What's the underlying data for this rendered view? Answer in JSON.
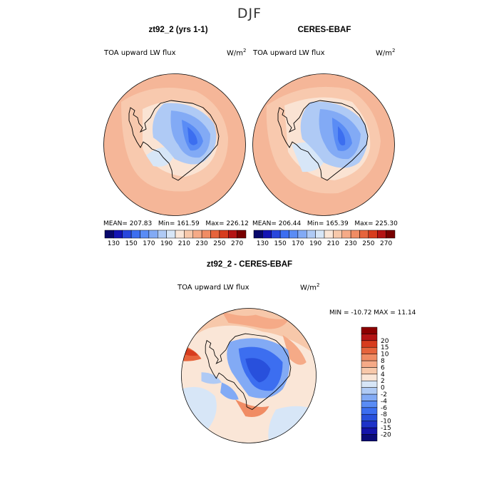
{
  "figure": {
    "title": "DJF"
  },
  "panels": [
    {
      "title": "zt92_2 (yrs 1-1)",
      "variable": "TOA upward LW flux",
      "units_base": "W/m",
      "units_exp": "2",
      "mean": "207.83",
      "min": "161.59",
      "max": "226.12",
      "mean_label": "MEAN=",
      "min_label": "Min=",
      "max_label": "Max="
    },
    {
      "title": "CERES-EBAF",
      "variable": "TOA upward LW flux",
      "units_base": "W/m",
      "units_exp": "2",
      "mean": "206.44",
      "min": "165.39",
      "max": "225.30",
      "mean_label": "MEAN=",
      "min_label": "Min=",
      "max_label": "Max="
    },
    {
      "title": "zt92_2 - CERES-EBAF",
      "variable": "TOA upward LW flux",
      "units_base": "W/m",
      "units_exp": "2",
      "stats_text": "MIN = -10.72  MAX =   11.14"
    }
  ],
  "colorbar_abs": {
    "colors": [
      "#08086b",
      "#1414b4",
      "#2846dc",
      "#3c6ef0",
      "#5a8cf5",
      "#82aaf5",
      "#afcaf5",
      "#d7e6f7",
      "#fae6d7",
      "#f7c8aa",
      "#f5aa87",
      "#f08c64",
      "#e6643c",
      "#d73c1e",
      "#b41414",
      "#780000"
    ],
    "tick_labels": [
      "130",
      "150",
      "170",
      "190",
      "210",
      "230",
      "250",
      "270"
    ]
  },
  "colorbar_diff": {
    "colors": [
      "#0a0a78",
      "#1414aa",
      "#1e32c8",
      "#2850dc",
      "#3c6ef0",
      "#5a8cf5",
      "#82aaf5",
      "#afcaf5",
      "#d7e6f7",
      "#fae6d7",
      "#f7c8aa",
      "#f5aa87",
      "#f08c64",
      "#e6643c",
      "#d73c1e",
      "#b41414",
      "#8c0000"
    ],
    "tick_labels": [
      "-20",
      "-15",
      "-10",
      "-8",
      "-6",
      "-4",
      "-2",
      "0",
      "2",
      "4",
      "6",
      "8",
      "10",
      "15",
      "20"
    ]
  }
}
